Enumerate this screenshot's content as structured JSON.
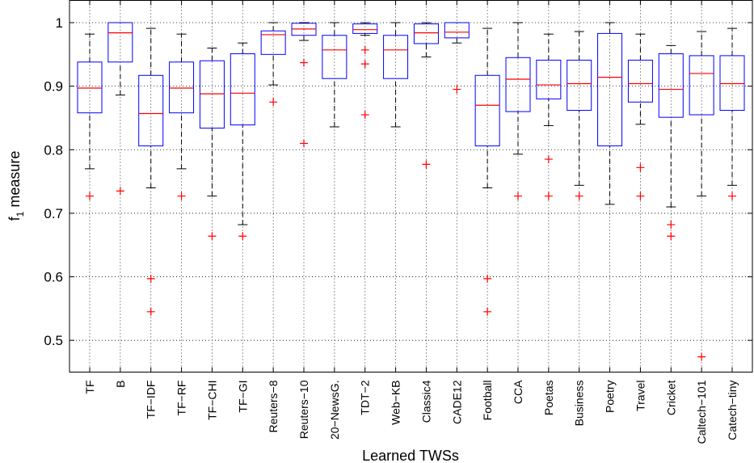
{
  "chart_data": {
    "type": "boxplot",
    "xlabel": "Learned TWSs",
    "ylabel_main": "f",
    "ylabel_sub": "1",
    "ylabel_rest": " measure",
    "ylim": [
      0.45,
      1.035
    ],
    "yticks": [
      0.5,
      0.6,
      0.7,
      0.8,
      0.9,
      1
    ],
    "ytick_labels": [
      "0.5",
      "0.6",
      "0.7",
      "0.8",
      "0.9",
      "1"
    ],
    "grid": true,
    "colors": {
      "box": "#0000ff",
      "median": "#ff0000",
      "whisker": "#000000",
      "outlier": "#ff0000"
    },
    "categories": [
      "TF",
      "B",
      "TF−IDF",
      "TF−RF",
      "TF−CHI",
      "TF−GI",
      "Reuters−8",
      "Reuters−10",
      "20−NewsG.",
      "TDT−2",
      "Web−KB",
      "Classic4",
      "CADE12",
      "Football",
      "CCA",
      "Poetas",
      "Business",
      "Poetry",
      "Travel",
      "Cricket",
      "Caltech−101",
      "Catech−tiny"
    ],
    "series": [
      {
        "whisker_low": 0.77,
        "q1": 0.858,
        "median": 0.897,
        "q3": 0.938,
        "whisker_high": 0.982,
        "outliers": [
          0.727
        ]
      },
      {
        "whisker_low": 0.886,
        "q1": 0.938,
        "median": 0.984,
        "q3": 1.0,
        "whisker_high": 1.0,
        "outliers": [
          0.735
        ]
      },
      {
        "whisker_low": 0.74,
        "q1": 0.806,
        "median": 0.857,
        "q3": 0.917,
        "whisker_high": 0.991,
        "outliers": [
          0.597,
          0.545
        ]
      },
      {
        "whisker_low": 0.77,
        "q1": 0.858,
        "median": 0.897,
        "q3": 0.938,
        "whisker_high": 0.982,
        "outliers": [
          0.727
        ]
      },
      {
        "whisker_low": 0.727,
        "q1": 0.834,
        "median": 0.888,
        "q3": 0.94,
        "whisker_high": 0.96,
        "outliers": [
          0.664
        ]
      },
      {
        "whisker_low": 0.682,
        "q1": 0.839,
        "median": 0.889,
        "q3": 0.951,
        "whisker_high": 0.968,
        "outliers": [
          0.664
        ]
      },
      {
        "whisker_low": 0.902,
        "q1": 0.95,
        "median": 0.981,
        "q3": 0.987,
        "whisker_high": 1.0,
        "outliers": [
          0.875
        ]
      },
      {
        "whisker_low": 0.972,
        "q1": 0.98,
        "median": 0.99,
        "q3": 0.999,
        "whisker_high": 1.0,
        "outliers": [
          0.937,
          0.81
        ]
      },
      {
        "whisker_low": 0.836,
        "q1": 0.912,
        "median": 0.957,
        "q3": 0.98,
        "whisker_high": 1.0,
        "outliers": []
      },
      {
        "whisker_low": 0.98,
        "q1": 0.983,
        "median": 0.989,
        "q3": 0.998,
        "whisker_high": 1.0,
        "outliers": [
          0.957,
          0.935,
          0.855
        ]
      },
      {
        "whisker_low": 0.836,
        "q1": 0.912,
        "median": 0.957,
        "q3": 0.98,
        "whisker_high": 1.0,
        "outliers": []
      },
      {
        "whisker_low": 0.946,
        "q1": 0.967,
        "median": 0.984,
        "q3": 0.998,
        "whisker_high": 1.0,
        "outliers": [
          0.777
        ]
      },
      {
        "whisker_low": 0.968,
        "q1": 0.976,
        "median": 0.985,
        "q3": 1.0,
        "whisker_high": 1.0,
        "outliers": [
          0.895
        ]
      },
      {
        "whisker_low": 0.74,
        "q1": 0.806,
        "median": 0.87,
        "q3": 0.917,
        "whisker_high": 0.991,
        "outliers": [
          0.597,
          0.545
        ]
      },
      {
        "whisker_low": 0.793,
        "q1": 0.86,
        "median": 0.911,
        "q3": 0.945,
        "whisker_high": 1.0,
        "outliers": [
          0.727
        ]
      },
      {
        "whisker_low": 0.838,
        "q1": 0.88,
        "median": 0.902,
        "q3": 0.941,
        "whisker_high": 0.982,
        "outliers": [
          0.785,
          0.727
        ]
      },
      {
        "whisker_low": 0.744,
        "q1": 0.862,
        "median": 0.904,
        "q3": 0.941,
        "whisker_high": 0.986,
        "outliers": [
          0.727
        ]
      },
      {
        "whisker_low": 0.714,
        "q1": 0.806,
        "median": 0.914,
        "q3": 0.983,
        "whisker_high": 1.0,
        "outliers": []
      },
      {
        "whisker_low": 0.84,
        "q1": 0.875,
        "median": 0.904,
        "q3": 0.941,
        "whisker_high": 0.982,
        "outliers": [
          0.772,
          0.727
        ]
      },
      {
        "whisker_low": 0.71,
        "q1": 0.851,
        "median": 0.895,
        "q3": 0.951,
        "whisker_high": 0.964,
        "outliers": [
          0.682,
          0.664
        ]
      },
      {
        "whisker_low": 0.727,
        "q1": 0.855,
        "median": 0.92,
        "q3": 0.948,
        "whisker_high": 0.986,
        "outliers": [
          0.474
        ]
      },
      {
        "whisker_low": 0.744,
        "q1": 0.862,
        "median": 0.904,
        "q3": 0.948,
        "whisker_high": 0.991,
        "outliers": [
          0.727
        ]
      }
    ]
  }
}
